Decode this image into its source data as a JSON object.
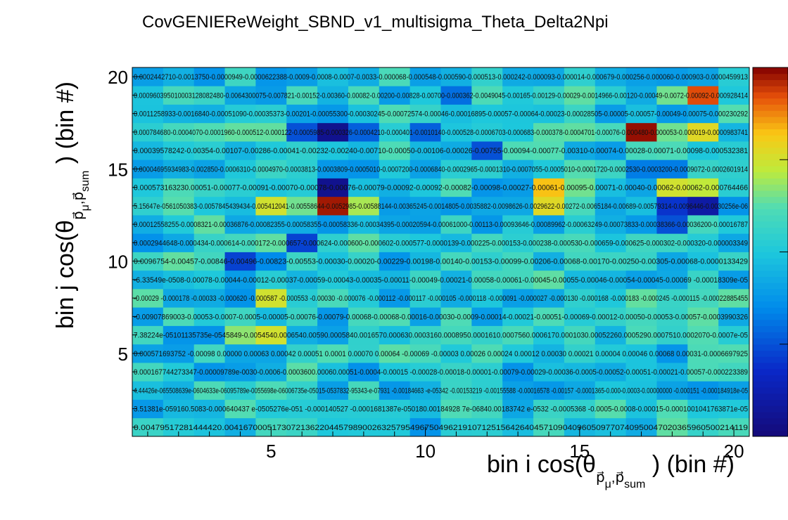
{
  "chart_data": {
    "type": "heatmap",
    "title": "CovGENIEReWeight_SBND_v1_multisigma_Theta_Delta2Npi",
    "xlabel": "bin i cos(θ_{p⃗μ,p⃗sum}) (bin #)",
    "ylabel": "bin j cos(θ_{p⃗μ,p⃗sum}) (bin #)",
    "xlabel_main": "bin i cos(θ",
    "xlabel_sub": "p⃗",
    "xlabel_subsub1": "μ",
    "xlabel_comma": ",p⃗",
    "xlabel_subsub2": "sum",
    "xlabel_tail": ") (bin #)",
    "ylabel_main": "bin j cos(θ",
    "ylabel_sub": "p⃗",
    "ylabel_subsub1": "μ",
    "ylabel_comma": ",p⃗",
    "ylabel_subsub2": "sum",
    "ylabel_tail": ") (bin #)",
    "x_range": [
      0.5,
      20.5
    ],
    "y_range": [
      0.5,
      20.5
    ],
    "x_ticks": [
      5,
      10,
      15,
      20
    ],
    "y_ticks": [
      5,
      10,
      15,
      20
    ],
    "colorscale": "rainbow (blue-cyan-green-yellow-red)",
    "z_range": [
      -0.01,
      0.01
    ],
    "n_bins": 20,
    "row_labels_bottom_to_top": [
      "0.00479517281444420.00416700051730721362204457989002632579549675049621910712515642640457109040960509770740950047020365960500214119",
      "3.51381e-059160.5083-0.000640437 e-0505276e-051 -0.000140527 -0.0001681387e-050180.00184928 7e-06840.00183742 e-0532 -0.0005368 -0.0005-0.0008-0.00015-0.0001001041763871e-05",
      "4.44426e-065508639e-0604633e-06095789e-0055698e-06006735e-05015-0537832-95343-e-07931 -0.00184663 -e-05342 -0.00153219 -0.00155588 -0.00016578 -0.00157 -0.0001365-0.000-0.0003-0.00000000 -0.000151 -0.000184918e-05",
      "0.000167744273347-0.00009789e-0030-0.0006-0.0003600.00060.00051-0.0004-0.00015 -0.00028-0.00018-0.00001-0.00079-0.00029-0.00036-0.0005-0.00052-0.00051-0.00021-0.00057-0.000223389",
      "0.000571693752 -0.00098 0.00000 0.00063 0.00042 0.00051 0.0001 0.00070 0.00064 -0.00069 -0.00003 0.00026 0.00024 0.00012 0.00030 0.00021 0.00004 0.00046 0.00068 0.00031-0.0006697925",
      "7.38224e-05101135735e-0545849-0.0054540.0006540.00590.0005840.0016570.000630.0003160.0008950.0001610.0007560.0006170.0001030.00052260.0005290.0007510.0002070-0.0007e-05",
      "-0.00907869003-0.00053-0.0007-0.0005-0.00005-0.00076-0.00079-0.00068-0.00068-0.00016-0.00030-0.0009-0.00014-0.00021-0.00051-0.00069-0.00012-0.00050-0.00053-0.00057-0.0003990326",
      "-0.00029 -0.000178 -0.00033 -0.000620 -0.000587 -0.000553 -0.00030 -0.000076 -0.000112 -0.000117 -0.000105 -0.000118 -0.000091 -0.000027 -0.000130 -0.000168 -0.000183 -0.000245 -0.000115 -0.00022885455",
      "-6.33549e-0508-0.00078-0.00044-0.00012-0.00037-0.00059-0.00043-0.00035-0.00011-0.00049-0.00021-0.00058-0.00061-0.00045-0.00055-0.00046-0.00054-0.00045-0.00069 -0.00018309e-05",
      "0.0096754-0.00457-0.00846-0.00496-0.00823-0.00553-0.00030-0.00020-0.00229-0.00198-0.00140-0.00153-0.00099-0.00206-0.00068-0.00170-0.00250-0.00305-0.00068-0.0000133429",
      "0.0002944648-0.000434-0.000614-0.000172-0.000657-0.000624-0.000600-0.000602-0.000577-0.0000139-0.000225-0.000153-0.000238-0.000530-0.000659-0.000625-0.000302-0.000320-0.000003349",
      "0.00012558255-0.0008321-0.00036876-0.00082355-0.00058355-0.00058336-0.00034395-0.00020594-0.00061000-0.00113-0.00093646-0.00089962-0.00063249-0.00073833-0.00038366-0.00036200-0.00016787",
      "5.15647e-0561050383-0.0057845439434-0.005412041-0.00558644-0.0052985-0.00588144-0.00365245-0.0014805-0.0035882-0.0098626-0.0029622-0.00272-0.0065184-0.00689-0.00579314-0.0096446-0.0030256e-06",
      "0.000573163230.00051-0.00077-0.00091-0.00070-0.00078-0.00076-0.00079-0.00092-0.00092-0.00082-0.00098-0.00027-0.00061-0.00095-0.00071-0.00040-0.00062-0.00062-0.000764466",
      "0.00004695934983-0.002850-0.0006310-0.0004970-0.0003813-0.0003809-0.0005010-0.0007200-0.0006840-0.0002965-0.0001310-0.0007055-0.0005010-0.0001720-0.0002530-0.0003200-0.0009072-0.0002601914",
      "0.00039578242-0.00354-0.00107-0.00286-0.00041-0.00232-0.00240-0.00710-0.00050-0.00106-0.00026-0.00755-0.00094-0.00077-0.00310-0.00074-0.00028-0.00071-0.00098-0.000532381",
      "0.000784680-0.0004070-0.0001960-0.000512-0.000122-0.0005985-0.000326-0.0004210-0.000401-0.0010140-0.000528-0.0006703-0.000683-0.000378-0.0004701-0.00076-0.000480-0.000053-0.000019-0.0000983741",
      "0.0011258933-0.0016840-0.00051090-0.00035373-0.00201-0.00055300-0.00030245-0.00072574-0.00046-0.00016895-0.00057-0.00064-0.00023-0.00028505-0.00005-0.00057-0.00049-0.00075-0.000230292",
      "0.000960395010003128082480-0.0064300075-0.007821-0.00152-0.00360-0.00082-0.00200-0.00828-0.00700-0.000362-0.0049045-0.00165-0.00129-0.00029-0.0014966-0.00120-0.00049-0.0072-0.00092-0.000928414",
      "0.0002442710-0.0013750-0.0000949-0.0000622388-0.0009-0.0008-0.0007-0.0033-0.000068-0.000548-0.000590-0.000513-0.000242-0.000093-0.000014-0.000679-0.000256-0.000060-0.000903-0.0000459913"
    ],
    "colorbar_ticks": [],
    "notes": "20x20 covariance heatmap with per-cell numeric labels (overlapping, largely illegible); dominant colors cyan/light-blue around zero, strong dark-blue and dark-red features near bins (7,12)-(7,13) and (17,17)"
  }
}
